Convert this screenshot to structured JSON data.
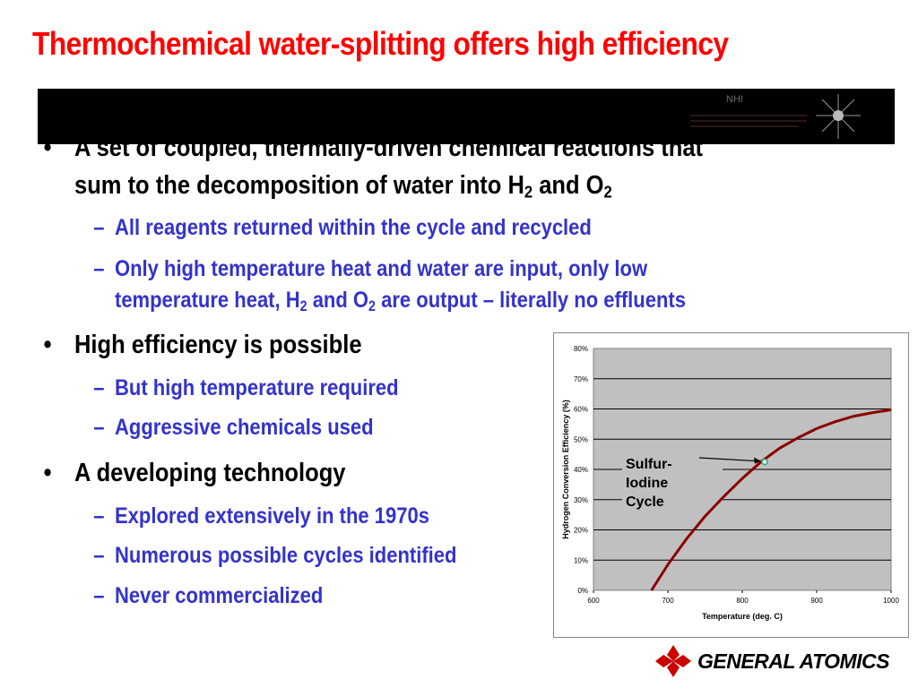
{
  "slide": {
    "title": "Thermochemical water-splitting offers high efficiency",
    "band_logo_text": "NHI",
    "bullets": [
      {
        "marker": "•",
        "lines": [
          "A set of coupled, thermally-driven chemical reactions that",
          "sum to the decomposition of water into H",
          "2",
          " and O",
          "2"
        ]
      },
      {
        "marker": "–",
        "text": "All reagents returned within the cycle and recycled"
      },
      {
        "marker": "–",
        "line1": "Only high temperature heat and water are input, only low",
        "line2_a": "temperature heat, H",
        "sub_a": "2",
        "line2_b": " and O",
        "sub_b": "2",
        "line2_c": " are output – literally no effluents"
      },
      {
        "marker": "•",
        "text": "High efficiency is possible"
      },
      {
        "marker": "–",
        "text": "But high temperature required"
      },
      {
        "marker": "–",
        "text": "Aggressive chemicals used"
      },
      {
        "marker": "•",
        "text": "A developing technology"
      },
      {
        "marker": "–",
        "text": "Explored extensively in the 1970s"
      },
      {
        "marker": "–",
        "text": "Numerous possible cycles identified"
      },
      {
        "marker": "–",
        "text": "Never commercialized"
      }
    ]
  },
  "chart_data": {
    "type": "line",
    "xlabel": "Temperature (deg. C)",
    "ylabel": "Hydrogen Conversion Efficiency (%)",
    "xlim": [
      600,
      1000
    ],
    "ylim": [
      0,
      80
    ],
    "x_ticks": [
      "600",
      "700",
      "800",
      "900",
      "1000"
    ],
    "y_ticks": [
      "0%",
      "10%",
      "20%",
      "30%",
      "40%",
      "50%",
      "60%",
      "70%",
      "80%"
    ],
    "grid": true,
    "series": [
      {
        "color": "#8b0000",
        "x": [
          678,
          700,
          725,
          750,
          775,
          800,
          825,
          850,
          875,
          900,
          925,
          950,
          975,
          1000
        ],
        "y": [
          0,
          8.5,
          17,
          24.5,
          31,
          37,
          42.5,
          47,
          50.5,
          53.5,
          55.8,
          57.6,
          58.8,
          59.7
        ]
      }
    ],
    "annotation": {
      "text_lines": [
        "Sulfur-",
        "Iodine",
        "Cycle"
      ],
      "point": {
        "x": 830,
        "y": 42.5
      },
      "point_color": "#2aa870"
    }
  },
  "footer": {
    "logo_text": "GENERAL ATOMICS",
    "logo_color": "#cc0000"
  }
}
